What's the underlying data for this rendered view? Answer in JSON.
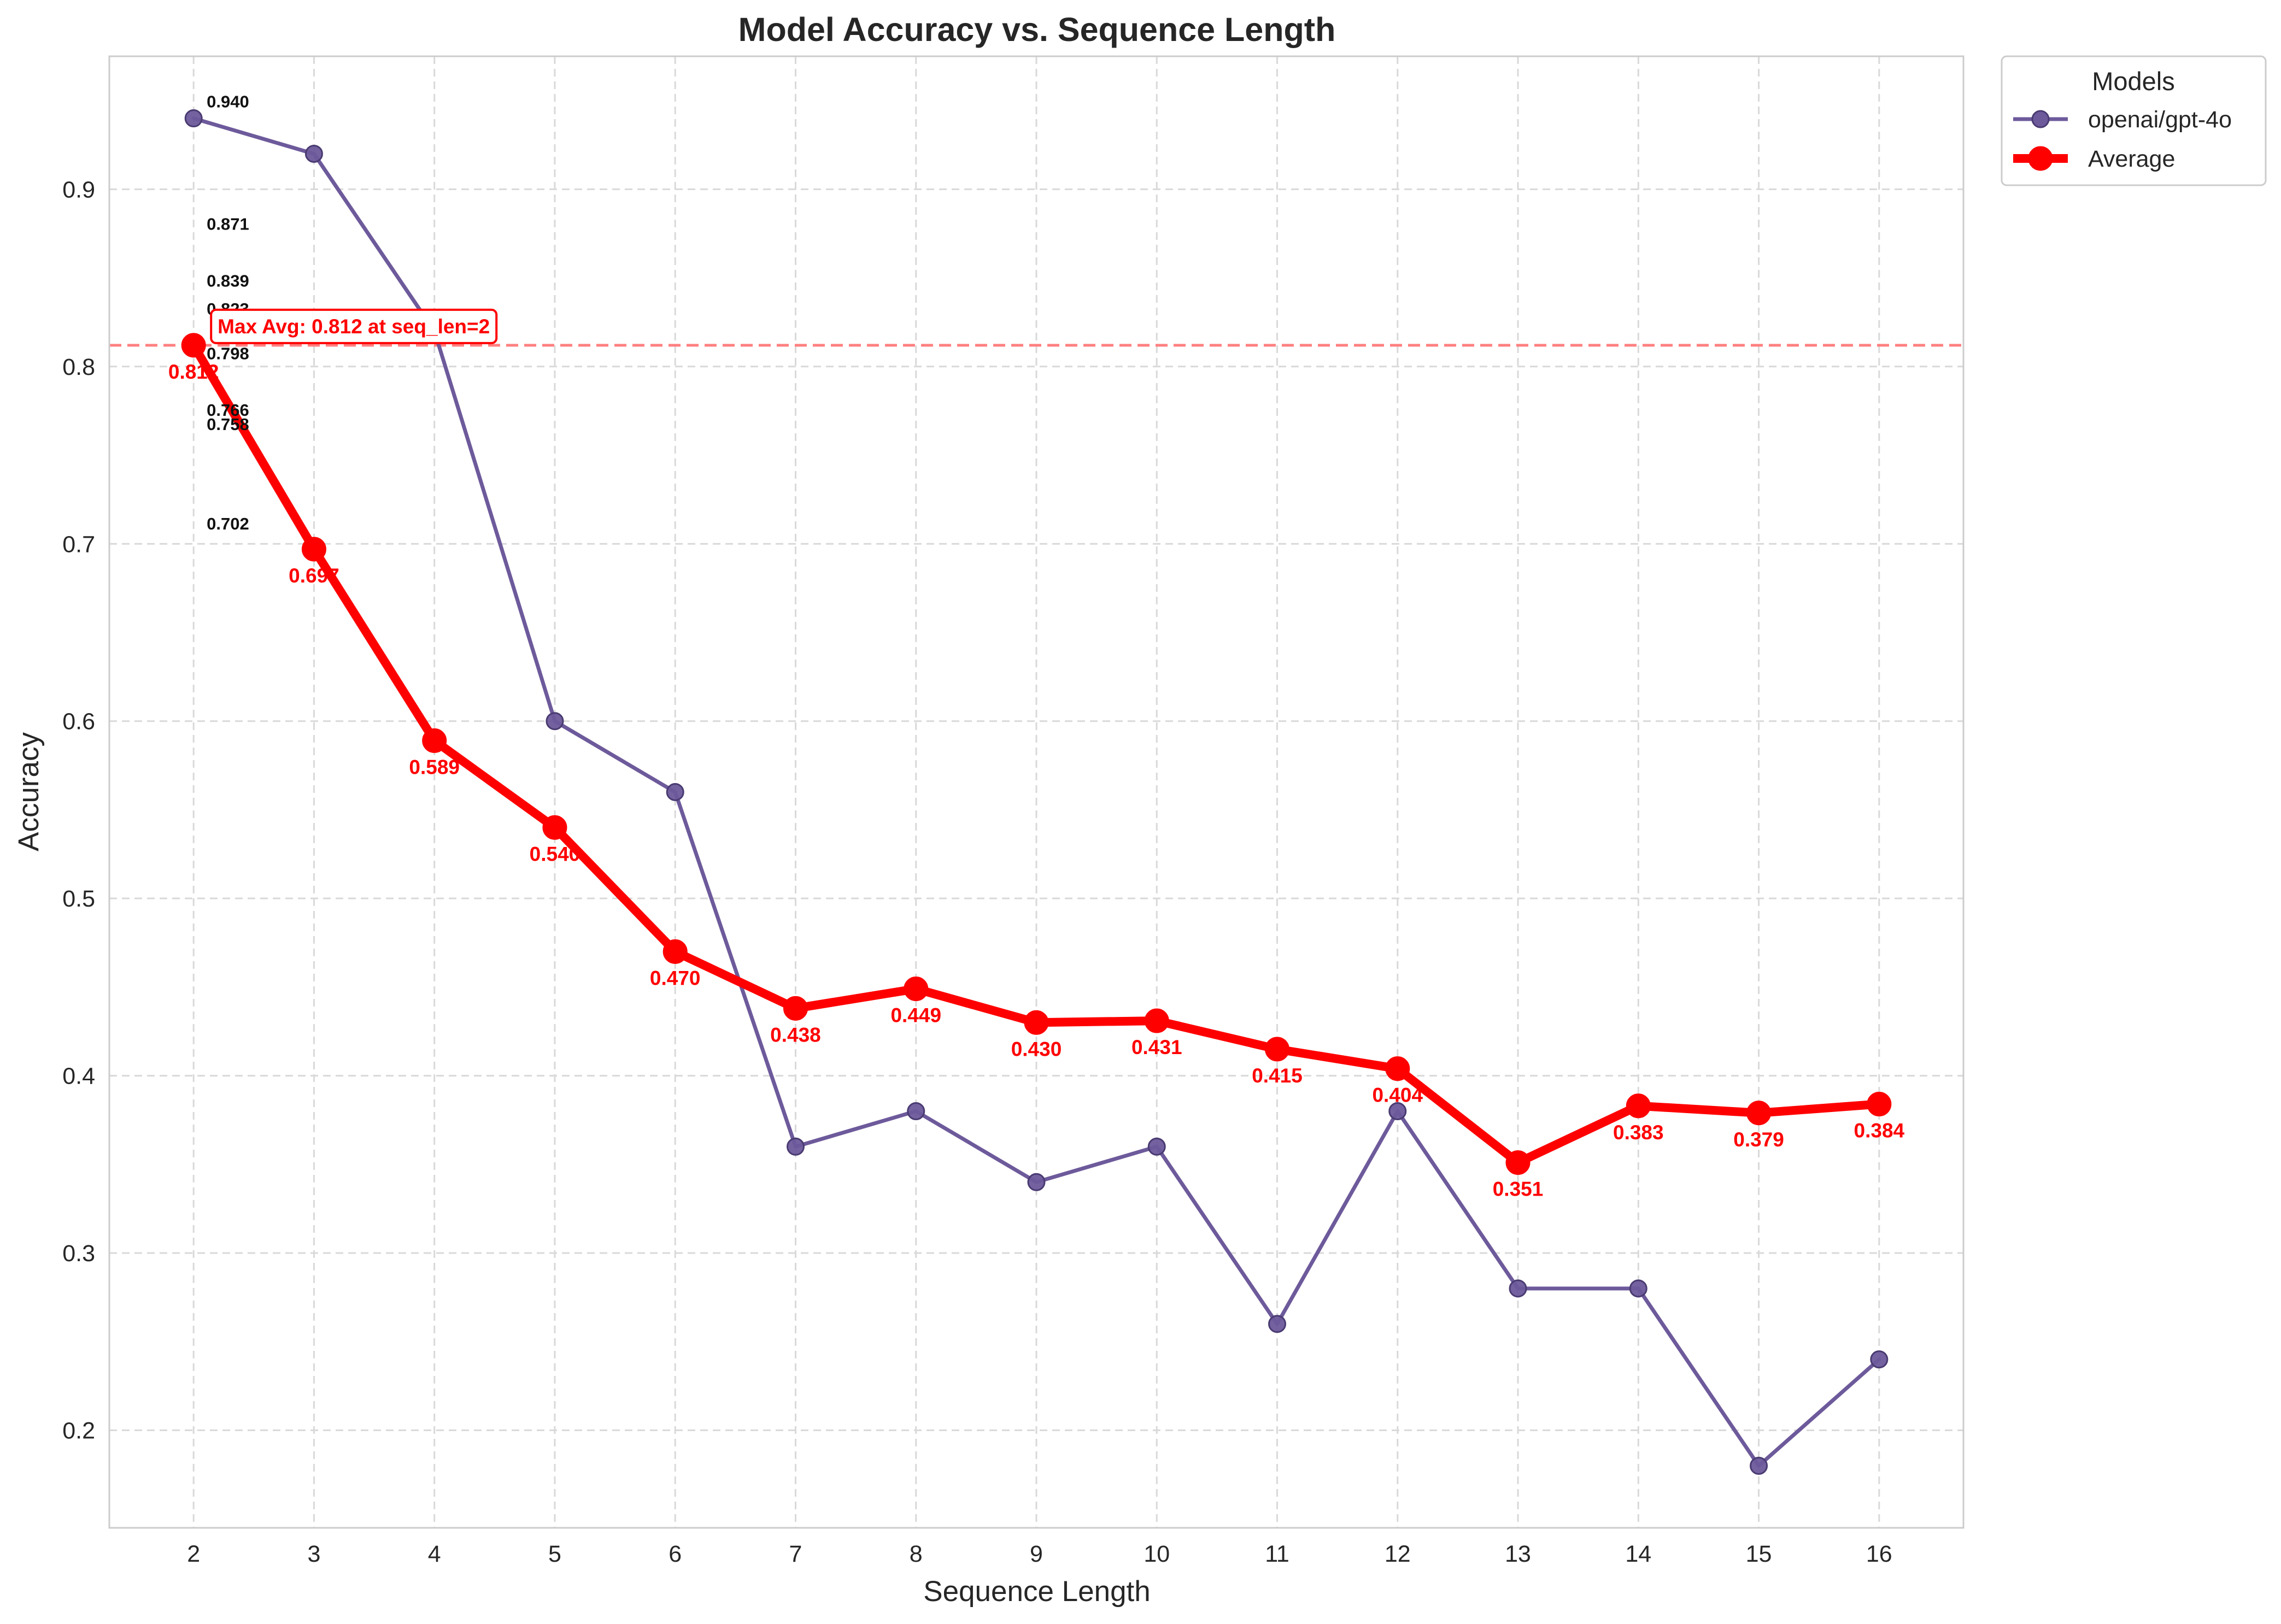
{
  "chart_data": {
    "type": "line",
    "title": "Model Accuracy vs. Sequence Length",
    "xlabel": "Sequence Length",
    "ylabel": "Accuracy",
    "xlim": [
      1.3,
      16.7
    ],
    "ylim": [
      0.145,
      0.975
    ],
    "x_ticks": [
      2,
      3,
      4,
      5,
      6,
      7,
      8,
      9,
      10,
      11,
      12,
      13,
      14,
      15,
      16
    ],
    "y_ticks": [
      0.2,
      0.3,
      0.4,
      0.5,
      0.6,
      0.7,
      0.8,
      0.9
    ],
    "y_tick_labels": [
      "0.2",
      "0.3",
      "0.4",
      "0.5",
      "0.6",
      "0.7",
      "0.8",
      "0.9"
    ],
    "grid": true,
    "legend": {
      "title": "Models",
      "placement": "outside-top-right"
    },
    "series": [
      {
        "name": "openai/gpt-4o",
        "color": "#6d5a9b",
        "x": [
          2,
          3,
          4,
          5,
          6,
          7,
          8,
          9,
          10,
          11,
          12,
          13,
          14,
          15,
          16
        ],
        "values": [
          0.94,
          0.92,
          0.82,
          0.6,
          0.56,
          0.36,
          0.38,
          0.34,
          0.36,
          0.26,
          0.38,
          0.28,
          0.28,
          0.18,
          0.24
        ]
      },
      {
        "name": "Average",
        "color": "#ff0000",
        "x": [
          2,
          3,
          4,
          5,
          6,
          7,
          8,
          9,
          10,
          11,
          12,
          13,
          14,
          15,
          16
        ],
        "values": [
          0.812,
          0.697,
          0.589,
          0.54,
          0.47,
          0.438,
          0.449,
          0.43,
          0.431,
          0.415,
          0.404,
          0.351,
          0.383,
          0.379,
          0.384
        ],
        "labels": [
          "0.812",
          "0.697",
          "0.589",
          "0.540",
          "0.470",
          "0.438",
          "0.449",
          "0.430",
          "0.431",
          "0.415",
          "0.404",
          "0.351",
          "0.383",
          "0.379",
          "0.384"
        ]
      }
    ],
    "model_value_labels": [
      {
        "x": 2,
        "value": 0.94,
        "text": "0.940"
      },
      {
        "x": 2,
        "value": 0.871,
        "text": "0.871"
      },
      {
        "x": 2,
        "value": 0.839,
        "text": "0.839"
      },
      {
        "x": 2,
        "value": 0.823,
        "text": "0.823"
      },
      {
        "x": 2,
        "value": 0.798,
        "text": "0.798"
      },
      {
        "x": 2,
        "value": 0.766,
        "text": "0.766"
      },
      {
        "x": 2,
        "value": 0.758,
        "text": "0.758"
      },
      {
        "x": 2,
        "value": 0.702,
        "text": "0.702"
      }
    ],
    "max_line": {
      "value": 0.812,
      "color": "#ff8080"
    },
    "annotation": {
      "text": "Max Avg: 0.812 at seq_len=2",
      "color": "#ff0000"
    }
  }
}
